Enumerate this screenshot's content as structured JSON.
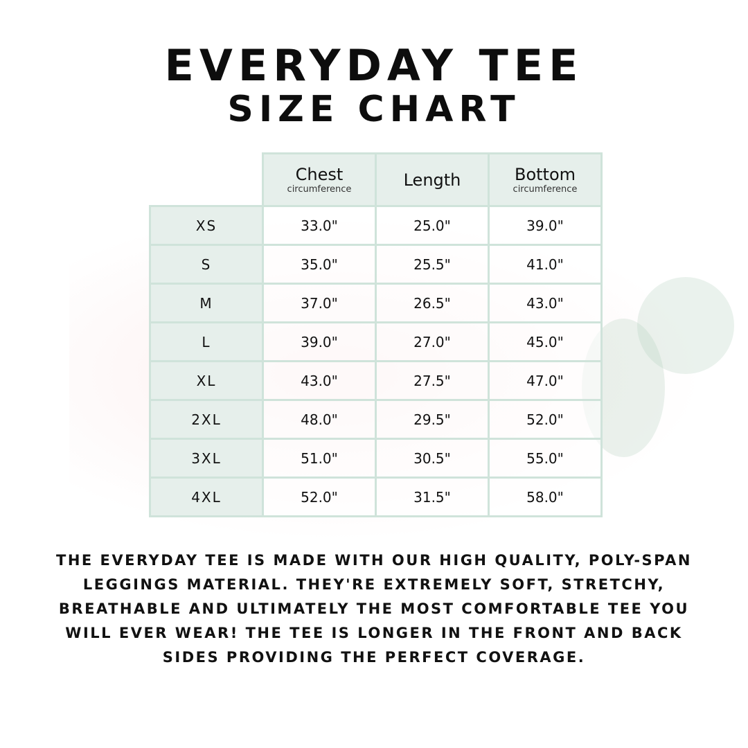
{
  "title": {
    "line1": "EVERYDAY TEE",
    "line2": "SIZE CHART"
  },
  "table": {
    "headers": [
      {
        "main": "Chest",
        "sub": "circumference"
      },
      {
        "main": "Length",
        "sub": ""
      },
      {
        "main": "Bottom",
        "sub": "circumference"
      }
    ],
    "rows": [
      {
        "size": "XS",
        "values": [
          "33.0\"",
          "25.0\"",
          "39.0\""
        ]
      },
      {
        "size": "S",
        "values": [
          "35.0\"",
          "25.5\"",
          "41.0\""
        ]
      },
      {
        "size": "M",
        "values": [
          "37.0\"",
          "26.5\"",
          "43.0\""
        ]
      },
      {
        "size": "L",
        "values": [
          "39.0\"",
          "27.0\"",
          "45.0\""
        ]
      },
      {
        "size": "XL",
        "values": [
          "43.0\"",
          "27.5\"",
          "47.0\""
        ]
      },
      {
        "size": "2XL",
        "values": [
          "48.0\"",
          "29.5\"",
          "52.0\""
        ]
      },
      {
        "size": "3XL",
        "values": [
          "51.0\"",
          "30.5\"",
          "55.0\""
        ]
      },
      {
        "size": "4XL",
        "values": [
          "52.0\"",
          "31.5\"",
          "58.0\""
        ]
      }
    ]
  },
  "description": "The Everyday Tee is made with our high quality, poly-span leggings material. They're extremely soft, stretchy, breathable and ultimately the most comfortable tee you will ever wear! The tee is longer in the front and back sides providing the perfect coverage.",
  "colors": {
    "border": "#cfe3da",
    "header_fill": "#e6efeb"
  }
}
